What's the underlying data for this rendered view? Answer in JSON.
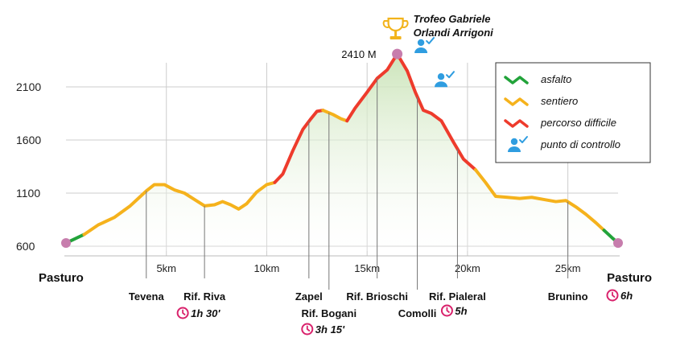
{
  "chart_data": {
    "type": "area",
    "xlim": [
      0,
      27.5
    ],
    "ylim": [
      550,
      2450
    ],
    "y_ticks": [
      {
        "value": 600,
        "label": "600"
      },
      {
        "value": 1100,
        "label": "1100"
      },
      {
        "value": 1600,
        "label": "1600"
      },
      {
        "value": 2100,
        "label": "2100"
      }
    ],
    "x_ticks": [
      {
        "value": 5,
        "label": "5km"
      },
      {
        "value": 10,
        "label": "10km"
      },
      {
        "value": 15,
        "label": "15km"
      },
      {
        "value": 20,
        "label": "20km"
      },
      {
        "value": 25,
        "label": "25km"
      }
    ],
    "segments": [
      {
        "type": "asfalto",
        "points": [
          [
            0,
            630
          ],
          [
            0.9,
            710
          ]
        ]
      },
      {
        "type": "sentiero",
        "points": [
          [
            0.9,
            710
          ],
          [
            1.6,
            800
          ],
          [
            2.4,
            870
          ],
          [
            3.2,
            980
          ],
          [
            4.0,
            1120
          ],
          [
            4.4,
            1180
          ],
          [
            4.9,
            1180
          ],
          [
            5.4,
            1130
          ],
          [
            5.9,
            1100
          ],
          [
            6.4,
            1040
          ],
          [
            6.9,
            980
          ],
          [
            7.4,
            990
          ],
          [
            7.8,
            1020
          ],
          [
            8.2,
            990
          ],
          [
            8.6,
            950
          ],
          [
            9.0,
            1000
          ],
          [
            9.5,
            1110
          ],
          [
            10.0,
            1180
          ],
          [
            10.4,
            1200
          ]
        ]
      },
      {
        "type": "percorso difficile",
        "points": [
          [
            10.4,
            1200
          ],
          [
            10.8,
            1280
          ],
          [
            11.3,
            1500
          ],
          [
            11.8,
            1700
          ],
          [
            12.2,
            1800
          ],
          [
            12.5,
            1870
          ],
          [
            12.8,
            1880
          ]
        ]
      },
      {
        "type": "sentiero",
        "points": [
          [
            12.8,
            1880
          ],
          [
            13.3,
            1840
          ],
          [
            13.7,
            1800
          ],
          [
            14.0,
            1780
          ]
        ]
      },
      {
        "type": "percorso difficile",
        "points": [
          [
            14.0,
            1780
          ],
          [
            14.4,
            1900
          ],
          [
            15.0,
            2050
          ],
          [
            15.5,
            2180
          ],
          [
            16.0,
            2260
          ],
          [
            16.5,
            2410
          ],
          [
            17.0,
            2250
          ],
          [
            17.4,
            2050
          ],
          [
            17.8,
            1880
          ],
          [
            18.2,
            1850
          ],
          [
            18.7,
            1780
          ],
          [
            19.3,
            1580
          ],
          [
            19.8,
            1420
          ],
          [
            20.4,
            1320
          ]
        ]
      },
      {
        "type": "sentiero",
        "points": [
          [
            20.4,
            1320
          ],
          [
            20.9,
            1200
          ],
          [
            21.4,
            1070
          ],
          [
            22.0,
            1060
          ],
          [
            22.6,
            1050
          ],
          [
            23.2,
            1060
          ],
          [
            23.8,
            1040
          ],
          [
            24.4,
            1020
          ],
          [
            24.9,
            1030
          ],
          [
            25.4,
            970
          ],
          [
            25.9,
            900
          ],
          [
            26.4,
            820
          ],
          [
            26.8,
            750
          ]
        ]
      },
      {
        "type": "asfalto",
        "points": [
          [
            26.8,
            750
          ],
          [
            27.2,
            680
          ],
          [
            27.5,
            630
          ]
        ]
      }
    ],
    "peak": {
      "x": 16.5,
      "y": 2410,
      "label": "2410 M"
    },
    "endpoint_markers": [
      {
        "x": 0,
        "y": 630
      },
      {
        "x": 27.5,
        "y": 630
      }
    ],
    "waypoints": [
      {
        "x": 4.0,
        "name": "Tevena",
        "drop": 1
      },
      {
        "x": 6.9,
        "name": "Rif. Riva",
        "drop": 1,
        "time": "1h 30'"
      },
      {
        "x": 12.1,
        "name": "Zapel",
        "drop": 1
      },
      {
        "x": 13.1,
        "name": "Rif. Bogani",
        "drop": 2,
        "time": "3h 15'"
      },
      {
        "x": 15.5,
        "name": "Rif. Brioschi",
        "drop": 1
      },
      {
        "x": 17.5,
        "name": "Comolli",
        "drop": 2
      },
      {
        "x": 19.5,
        "name": "Rif. Pialeral",
        "drop": 1,
        "time": "5h"
      },
      {
        "x": 25.0,
        "name": "Brunino",
        "drop": 1
      }
    ],
    "start_label": "Pasturo",
    "end_label": "Pasturo",
    "end_time": "6h",
    "control_points": [
      {
        "x": 16.6,
        "y": 2320
      },
      {
        "x": 17.6,
        "y": 2000
      }
    ],
    "trophy_text": [
      "Trofeo Gabriele",
      "Orlandi Arrigoni"
    ],
    "legend": [
      {
        "label": "asfalto",
        "color": "#22a33a",
        "kind": "line"
      },
      {
        "label": "sentiero",
        "color": "#f5b21c",
        "kind": "line"
      },
      {
        "label": "percorso difficile",
        "color": "#ee3b2c",
        "kind": "line"
      },
      {
        "label": "punto di controllo",
        "color": "#2f9de0",
        "kind": "icon"
      }
    ],
    "colors": {
      "asfalto": "#22a33a",
      "sentiero": "#f5b21c",
      "percorso difficile": "#ee3b2c",
      "marker": "#c77dad",
      "time_icon": "#d9226c",
      "trophy": "#f2b31b",
      "control": "#2f9de0",
      "fill_top": "#c9e3b6",
      "grid": "#cccccc"
    }
  }
}
